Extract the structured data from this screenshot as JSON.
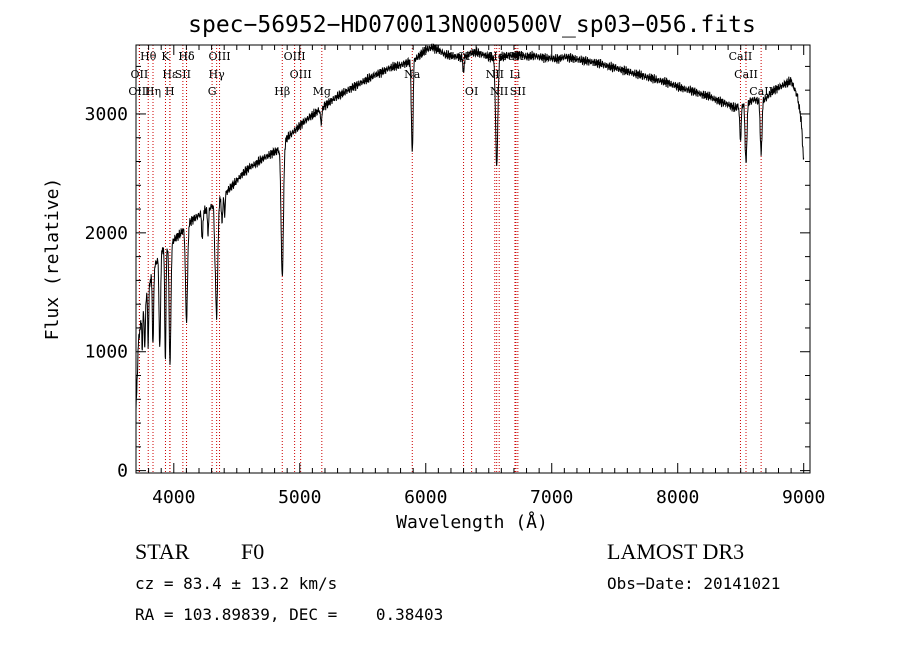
{
  "chart_data": {
    "type": "line",
    "title": "spec−56952−HD070013N000500V_sp03−056.fits",
    "xlabel": "Wavelength (Å)",
    "ylabel": "Flux (relative)",
    "xlim": [
      3700,
      9050
    ],
    "ylim": [
      -20,
      3580
    ],
    "xticks": [
      4000,
      5000,
      6000,
      7000,
      8000,
      9000
    ],
    "yticks": [
      0,
      1000,
      2000,
      3000
    ],
    "xtick_labels": [
      "4000",
      "5000",
      "6000",
      "7000",
      "8000",
      "9000"
    ],
    "ytick_labels": [
      "0",
      "1000",
      "2000",
      "3000"
    ],
    "grid": false,
    "line_color": "#000000",
    "marker_color": "#cc0000",
    "continuum": [
      [
        3700,
        500
      ],
      [
        3720,
        1100
      ],
      [
        3740,
        1250
      ],
      [
        3760,
        1350
      ],
      [
        3780,
        1450
      ],
      [
        3800,
        1550
      ],
      [
        3820,
        1620
      ],
      [
        3850,
        1720
      ],
      [
        3880,
        1800
      ],
      [
        3900,
        1850
      ],
      [
        3940,
        1880
      ],
      [
        3970,
        1900
      ],
      [
        4000,
        1940
      ],
      [
        4050,
        1990
      ],
      [
        4100,
        2060
      ],
      [
        4150,
        2110
      ],
      [
        4200,
        2150
      ],
      [
        4250,
        2190
      ],
      [
        4300,
        2220
      ],
      [
        4350,
        2270
      ],
      [
        4400,
        2320
      ],
      [
        4450,
        2380
      ],
      [
        4500,
        2440
      ],
      [
        4550,
        2500
      ],
      [
        4600,
        2550
      ],
      [
        4650,
        2580
      ],
      [
        4700,
        2620
      ],
      [
        4750,
        2650
      ],
      [
        4800,
        2680
      ],
      [
        4850,
        2710
      ],
      [
        4900,
        2800
      ],
      [
        4950,
        2850
      ],
      [
        5000,
        2900
      ],
      [
        5050,
        2950
      ],
      [
        5100,
        2990
      ],
      [
        5150,
        3030
      ],
      [
        5200,
        3070
      ],
      [
        5250,
        3110
      ],
      [
        5300,
        3150
      ],
      [
        5350,
        3180
      ],
      [
        5400,
        3210
      ],
      [
        5450,
        3240
      ],
      [
        5500,
        3270
      ],
      [
        5550,
        3300
      ],
      [
        5600,
        3330
      ],
      [
        5650,
        3350
      ],
      [
        5700,
        3380
      ],
      [
        5750,
        3400
      ],
      [
        5800,
        3410
      ],
      [
        5850,
        3430
      ],
      [
        5900,
        3450
      ],
      [
        5950,
        3490
      ],
      [
        6000,
        3540
      ],
      [
        6050,
        3560
      ],
      [
        6100,
        3540
      ],
      [
        6150,
        3500
      ],
      [
        6200,
        3490
      ],
      [
        6250,
        3480
      ],
      [
        6300,
        3470
      ],
      [
        6350,
        3510
      ],
      [
        6400,
        3520
      ],
      [
        6450,
        3500
      ],
      [
        6500,
        3480
      ],
      [
        6550,
        3470
      ],
      [
        6600,
        3480
      ],
      [
        6650,
        3490
      ],
      [
        6700,
        3490
      ],
      [
        6750,
        3500
      ],
      [
        6800,
        3480
      ],
      [
        6850,
        3490
      ],
      [
        6900,
        3480
      ],
      [
        6950,
        3470
      ],
      [
        7000,
        3470
      ],
      [
        7050,
        3460
      ],
      [
        7100,
        3480
      ],
      [
        7150,
        3470
      ],
      [
        7200,
        3460
      ],
      [
        7250,
        3450
      ],
      [
        7300,
        3440
      ],
      [
        7350,
        3430
      ],
      [
        7400,
        3420
      ],
      [
        7450,
        3400
      ],
      [
        7500,
        3390
      ],
      [
        7550,
        3370
      ],
      [
        7600,
        3360
      ],
      [
        7650,
        3340
      ],
      [
        7700,
        3330
      ],
      [
        7750,
        3310
      ],
      [
        7800,
        3300
      ],
      [
        7850,
        3280
      ],
      [
        7900,
        3270
      ],
      [
        7950,
        3250
      ],
      [
        8000,
        3230
      ],
      [
        8050,
        3210
      ],
      [
        8100,
        3200
      ],
      [
        8150,
        3180
      ],
      [
        8200,
        3160
      ],
      [
        8250,
        3150
      ],
      [
        8300,
        3120
      ],
      [
        8350,
        3100
      ],
      [
        8400,
        3080
      ],
      [
        8450,
        3050
      ],
      [
        8500,
        3080
      ],
      [
        8550,
        3090
      ],
      [
        8600,
        3120
      ],
      [
        8650,
        3110
      ],
      [
        8700,
        3130
      ],
      [
        8750,
        3190
      ],
      [
        8800,
        3220
      ],
      [
        8850,
        3250
      ],
      [
        8900,
        3280
      ],
      [
        8950,
        3150
      ],
      [
        8980,
        2950
      ],
      [
        9000,
        2600
      ]
    ],
    "absorption_lines": [
      [
        3750,
        300,
        3
      ],
      [
        3770,
        380,
        4
      ],
      [
        3797,
        480,
        4
      ],
      [
        3835,
        620,
        5
      ],
      [
        3889,
        800,
        6
      ],
      [
        3933,
        950,
        5
      ],
      [
        3970,
        1000,
        7
      ],
      [
        4101,
        800,
        8
      ],
      [
        4226,
        230,
        5
      ],
      [
        4272,
        200,
        5
      ],
      [
        4325,
        180,
        5
      ],
      [
        4340,
        950,
        9
      ],
      [
        4383,
        220,
        5
      ],
      [
        4404,
        180,
        4
      ],
      [
        4861,
        1100,
        9
      ],
      [
        5170,
        120,
        6
      ],
      [
        5890,
        500,
        6
      ],
      [
        5896,
        400,
        5
      ],
      [
        6300,
        120,
        5
      ],
      [
        6563,
        900,
        9
      ],
      [
        8498,
        300,
        6
      ],
      [
        8542,
        500,
        7
      ],
      [
        8662,
        450,
        7
      ]
    ],
    "line_markers": [
      {
        "label": "Hδ",
        "wl": 4101,
        "row": 1
      },
      {
        "label": "K",
        "wl": 3934,
        "row": 1
      },
      {
        "label": "OII",
        "wl": 3727,
        "row": 2
      },
      {
        "label": "Hε",
        "wl": 3970,
        "row": 2
      },
      {
        "label": "OIII",
        "wl": 3727,
        "row": 3
      },
      {
        "label": "Hη",
        "wl": 3835,
        "row": 3
      },
      {
        "label": "H",
        "wl": 3968,
        "row": 3
      },
      {
        "label": "Hθ",
        "wl": 3797,
        "row": 1
      },
      {
        "label": "SII",
        "wl": 4072,
        "row": 2
      },
      {
        "label": "Hδ",
        "wl": 4101,
        "row": 1
      },
      {
        "label": "OIII",
        "wl": 4363,
        "row": 1
      },
      {
        "label": "Hγ",
        "wl": 4340,
        "row": 2
      },
      {
        "label": "G",
        "wl": 4304,
        "row": 3
      },
      {
        "label": "OIII",
        "wl": 4959,
        "row": 1
      },
      {
        "label": "OIII",
        "wl": 5007,
        "row": 2
      },
      {
        "label": "Hβ",
        "wl": 4861,
        "row": 3
      },
      {
        "label": "Mg",
        "wl": 5175,
        "row": 3
      },
      {
        "label": "Na",
        "wl": 5893,
        "row": 2
      },
      {
        "label": "OI",
        "wl": 6300,
        "row": 1
      },
      {
        "label": "OI",
        "wl": 6364,
        "row": 3
      },
      {
        "label": "Hα",
        "wl": 6563,
        "row": 1
      },
      {
        "label": "NII",
        "wl": 6548,
        "row": 2
      },
      {
        "label": "NII",
        "wl": 6583,
        "row": 3
      },
      {
        "label": "SII",
        "wl": 6716,
        "row": 1
      },
      {
        "label": "Li",
        "wl": 6708,
        "row": 2
      },
      {
        "label": "SII",
        "wl": 6731,
        "row": 3
      },
      {
        "label": "CaII",
        "wl": 8498,
        "row": 1
      },
      {
        "label": "CaII",
        "wl": 8542,
        "row": 2
      },
      {
        "label": "CaII",
        "wl": 8662,
        "row": 3
      }
    ]
  },
  "info": {
    "object_class": "STAR",
    "subclass": "F0",
    "survey": "LAMOST DR3",
    "redshift_line": "cz = 83.4 ± 13.2 km/s",
    "obs_date": "Obs−Date: 20141021",
    "coords_line": "RA = 103.89839, DEC =    0.38403"
  }
}
